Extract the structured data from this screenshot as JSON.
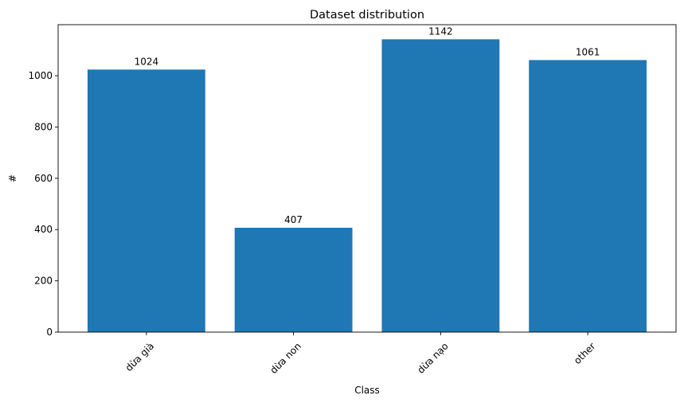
{
  "chart_data": {
    "type": "bar",
    "title": "Dataset distribution",
    "xlabel": "Class",
    "ylabel": "#",
    "categories": [
      "dừa già",
      "dừa non",
      "dừa nạo",
      "other"
    ],
    "values": [
      1024,
      407,
      1142,
      1061
    ],
    "ylim": [
      0,
      1199
    ],
    "yticks": [
      0,
      200,
      400,
      600,
      800,
      1000
    ],
    "xtick_rotation_deg": 45,
    "bar_color": "#1f77b4",
    "grid": false,
    "legend": "none"
  }
}
